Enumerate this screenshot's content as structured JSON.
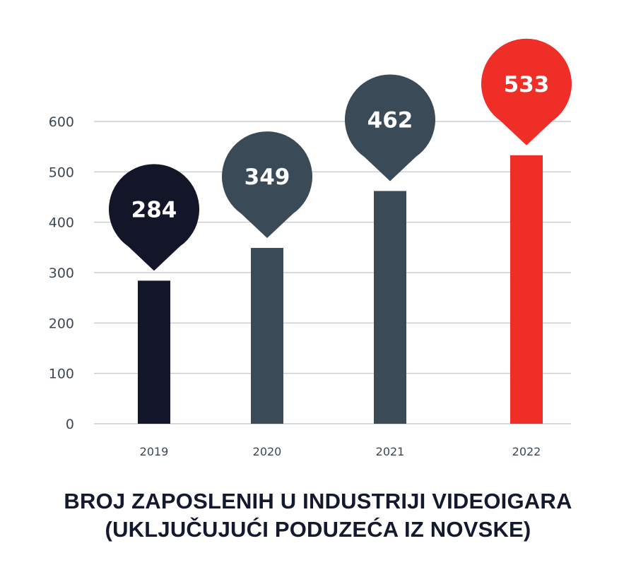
{
  "chart_data": {
    "type": "bar",
    "categories": [
      "2019",
      "2020",
      "2021",
      "2022"
    ],
    "values": [
      284,
      349,
      462,
      533
    ],
    "data_labels": [
      "284",
      "349",
      "462",
      "533"
    ],
    "bar_colors": [
      "#131628",
      "#3b4a57",
      "#3b4a57",
      "#ee2e27"
    ],
    "ylim": [
      0,
      600
    ],
    "yticks": [
      "0",
      "100",
      "200",
      "300",
      "400",
      "500",
      "600"
    ],
    "grid": true,
    "grid_color": "#c9ced3",
    "title_lines": [
      "BROJ ZAPOSLENIH U INDUSTRIJI VIDEOIGARA",
      "(UKLJUČUJUĆI PODUZEĆA IZ NOVSKE)"
    ]
  }
}
